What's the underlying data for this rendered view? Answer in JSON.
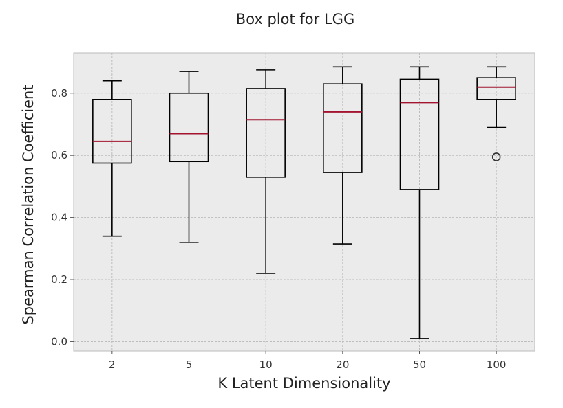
{
  "chart_data": {
    "type": "box",
    "title": "Box plot for LGG",
    "xlabel": "K Latent Dimensionality",
    "ylabel": "Spearman Correlation Coefficient",
    "categories": [
      "2",
      "5",
      "10",
      "20",
      "50",
      "100"
    ],
    "ylim": [
      -0.03,
      0.93
    ],
    "yticks": [
      0.0,
      0.2,
      0.4,
      0.6,
      0.8
    ],
    "ytick_labels": [
      "0.0",
      "0.2",
      "0.4",
      "0.6",
      "0.8"
    ],
    "grid": true,
    "boxes": [
      {
        "category": "2",
        "whisker_low": 0.34,
        "q1": 0.575,
        "median": 0.645,
        "q3": 0.78,
        "whisker_high": 0.84,
        "outliers": []
      },
      {
        "category": "5",
        "whisker_low": 0.32,
        "q1": 0.58,
        "median": 0.67,
        "q3": 0.8,
        "whisker_high": 0.87,
        "outliers": []
      },
      {
        "category": "10",
        "whisker_low": 0.22,
        "q1": 0.53,
        "median": 0.715,
        "q3": 0.815,
        "whisker_high": 0.875,
        "outliers": []
      },
      {
        "category": "20",
        "whisker_low": 0.315,
        "q1": 0.545,
        "median": 0.74,
        "q3": 0.83,
        "whisker_high": 0.885,
        "outliers": []
      },
      {
        "category": "50",
        "whisker_low": 0.01,
        "q1": 0.49,
        "median": 0.77,
        "q3": 0.845,
        "whisker_high": 0.885,
        "outliers": []
      },
      {
        "category": "100",
        "whisker_low": 0.69,
        "q1": 0.78,
        "median": 0.82,
        "q3": 0.85,
        "whisker_high": 0.885,
        "outliers": [
          0.595
        ]
      }
    ],
    "colors": {
      "plot_background": "#ebebeb",
      "grid": "#bdbdbd",
      "box": "#000000",
      "median": "#a2142f",
      "outlier": "#333333"
    }
  }
}
